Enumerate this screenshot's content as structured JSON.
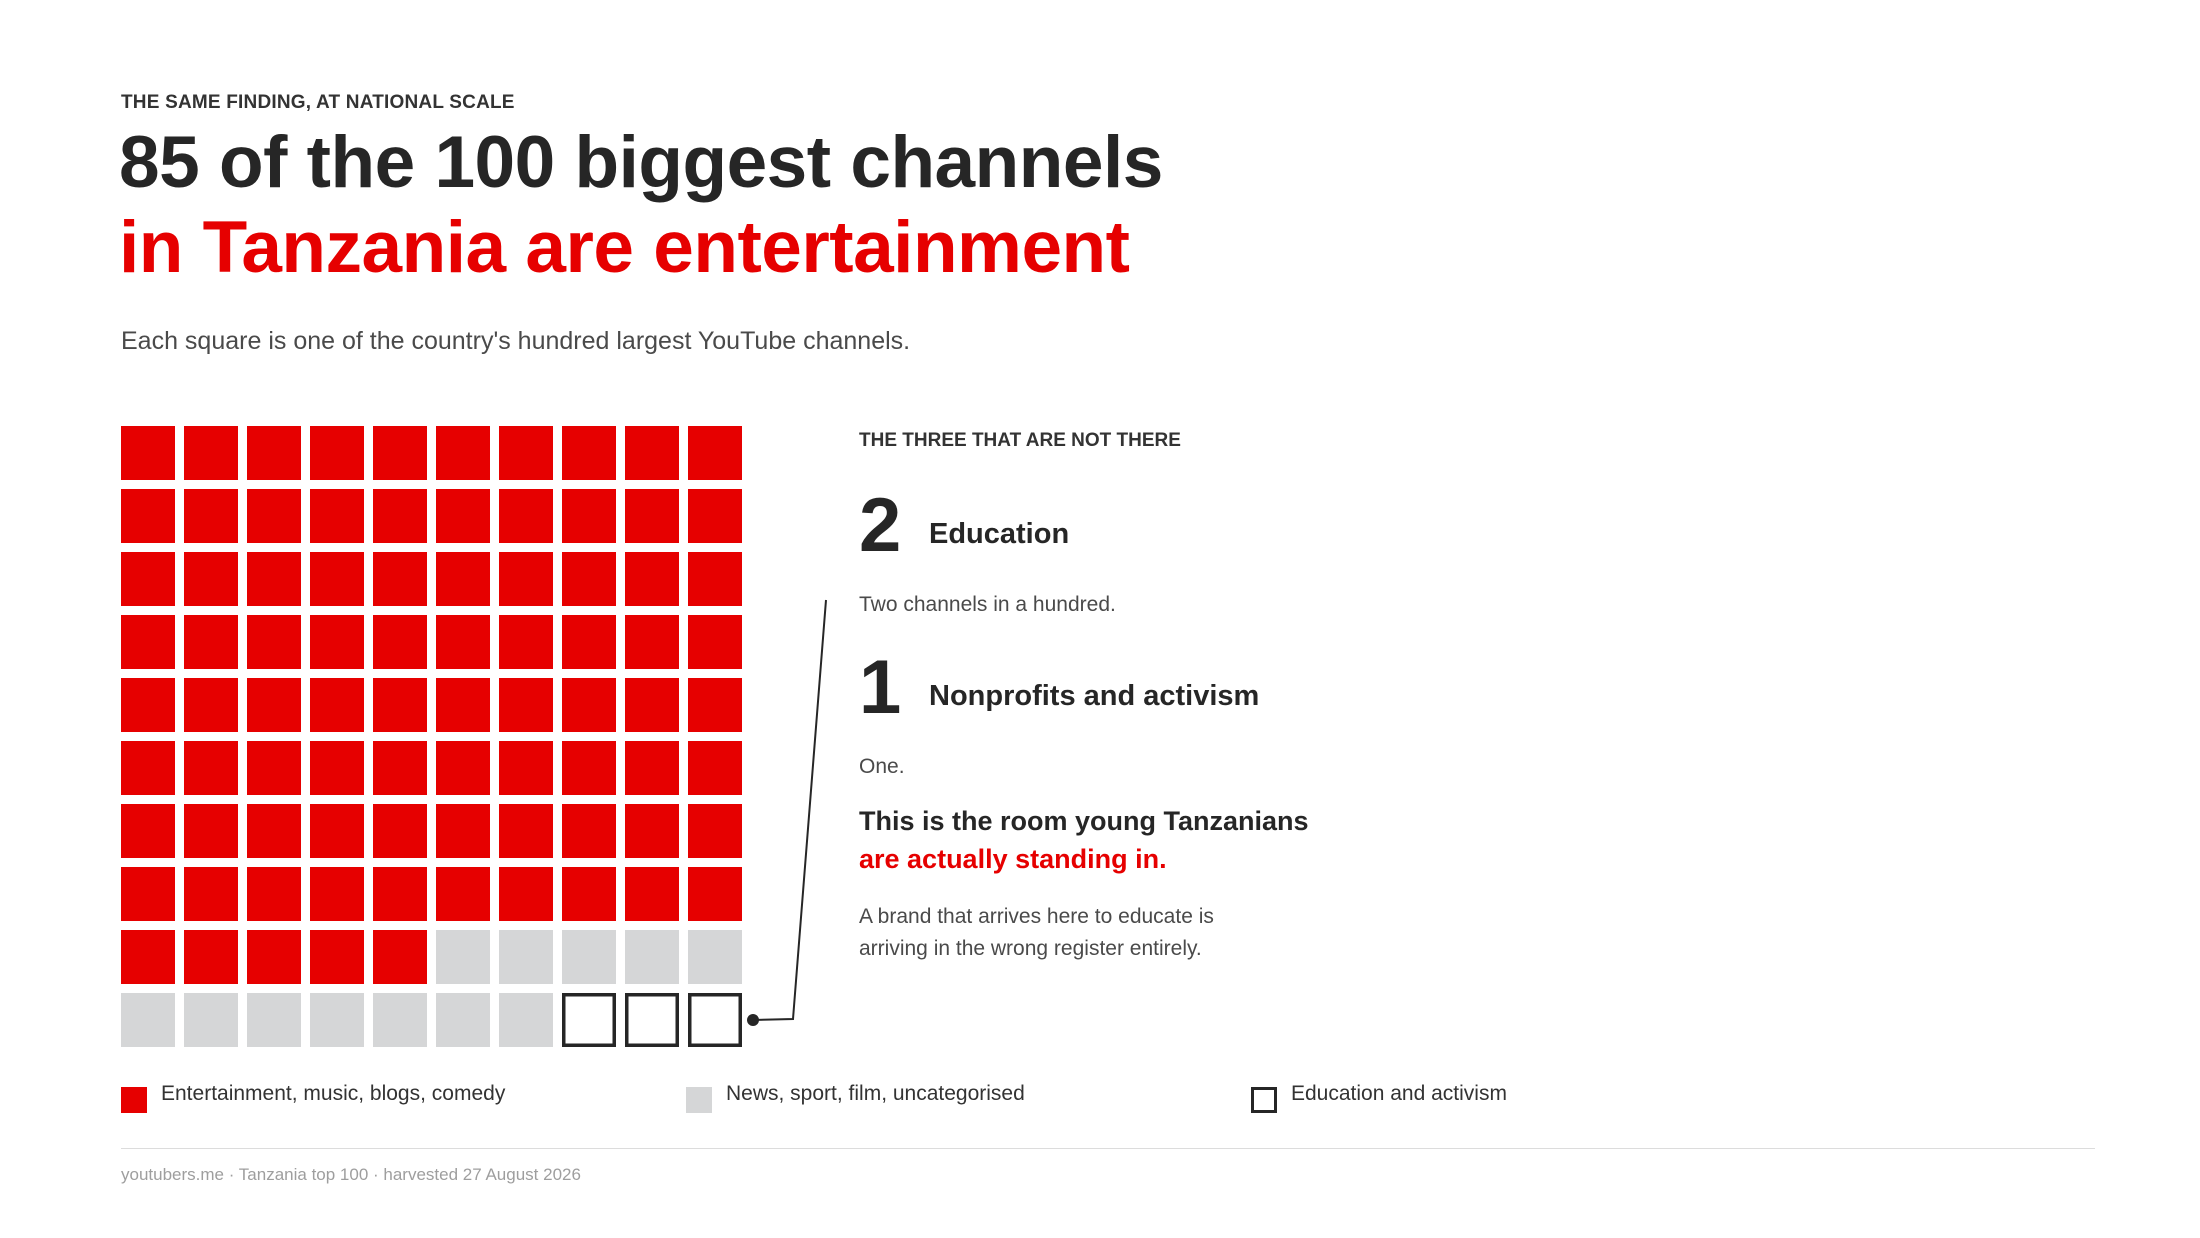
{
  "eyebrow": "THE SAME FINDING, AT NATIONAL SCALE",
  "title": {
    "line1": "85 of the 100 biggest channels",
    "line2": "in Tanzania are entertainment"
  },
  "subtitle": "Each square is one of the country's hundred largest YouTube channels.",
  "side": {
    "heading": "THE THREE THAT ARE NOT THERE",
    "stats": [
      {
        "number": "2",
        "label": "Education",
        "desc": "Two channels in a hundred."
      },
      {
        "number": "1",
        "label": "Nonprofits and activism",
        "desc": "One."
      }
    ],
    "callout": {
      "line1": "This is the room young Tanzanians",
      "line2": "are actually standing in."
    },
    "note": {
      "line1": "A brand that arrives here to educate is",
      "line2": "arriving in the wrong register entirely."
    }
  },
  "legend": [
    {
      "label": "Entertainment, music, blogs, comedy",
      "color": "#e60000",
      "style": "filled"
    },
    {
      "label": "News, sport, film, uncategorised",
      "color": "#d5d6d7",
      "style": "filled"
    },
    {
      "label": "Education and activism",
      "color": "#262626",
      "style": "outline"
    }
  ],
  "footer": "youtubers.me · Tanzania top 100 · harvested 27 August 2026",
  "colors": {
    "accent": "#e60000",
    "neutral": "#d5d6d7",
    "ink": "#262626"
  },
  "chart_data": {
    "type": "waffle",
    "total": 100,
    "columns": 10,
    "categories": [
      {
        "name": "Entertainment, music, blogs, comedy",
        "count": 85,
        "color": "#e60000",
        "style": "filled"
      },
      {
        "name": "News, sport, film, uncategorised",
        "count": 12,
        "color": "#d5d6d7",
        "style": "filled"
      },
      {
        "name": "Education and activism",
        "count": 3,
        "color": "#262626",
        "style": "outline"
      }
    ],
    "annotation": "THE THREE THAT ARE NOT THERE"
  }
}
